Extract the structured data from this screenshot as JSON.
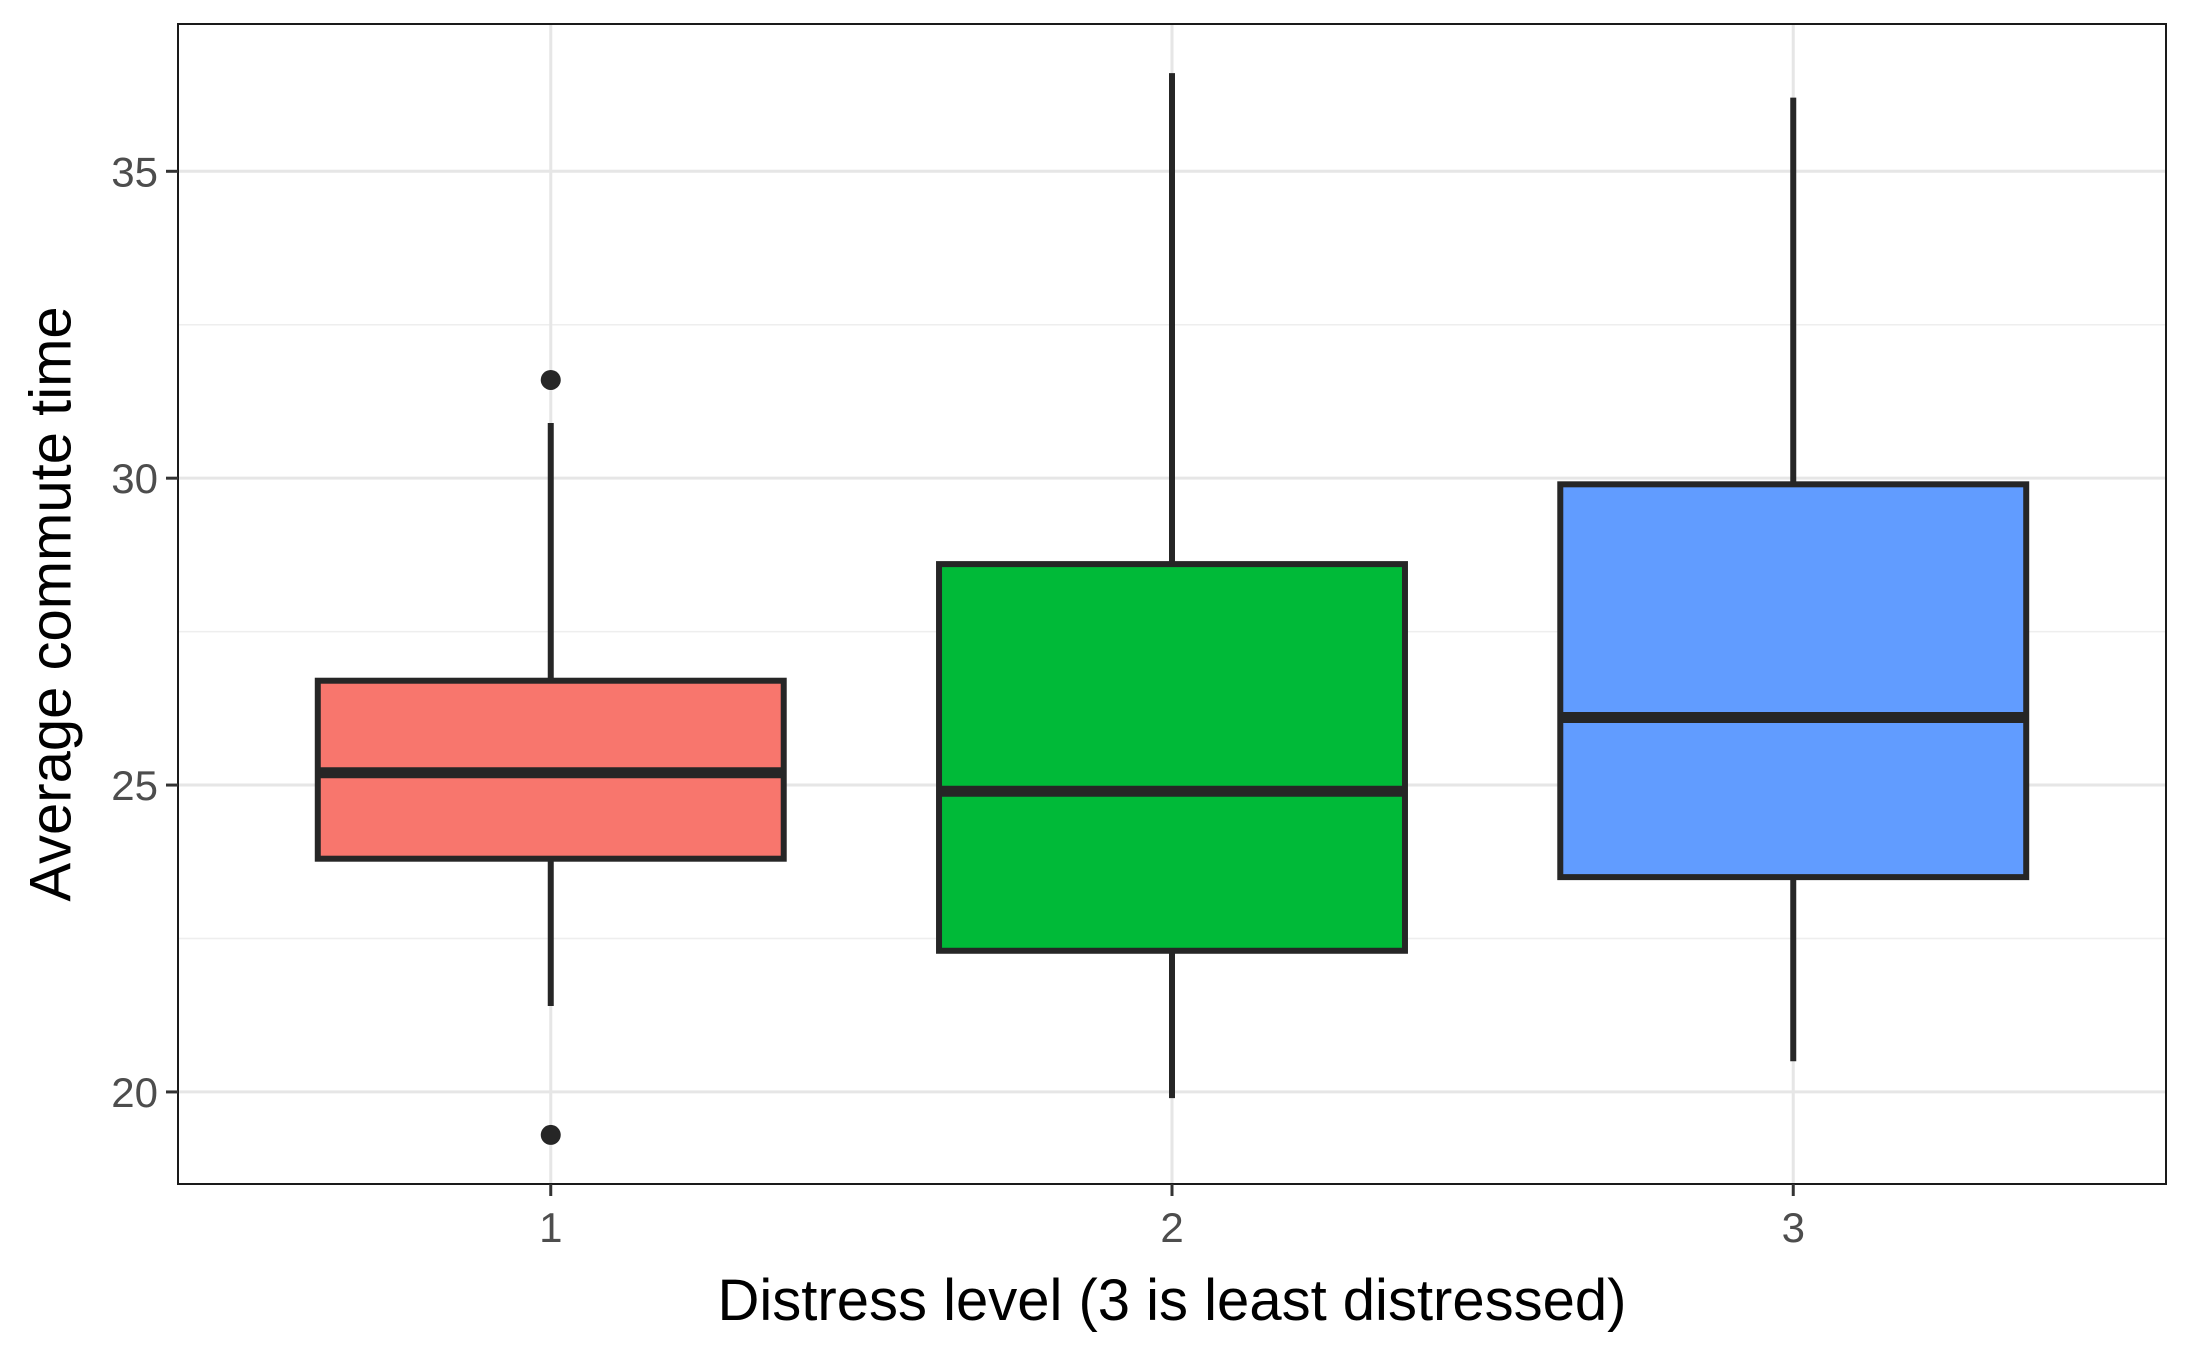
{
  "chart_data": {
    "type": "boxplot",
    "title": "",
    "xlabel": "Distress level (3 is least distressed)",
    "ylabel": "Average commute time",
    "categories": [
      "1",
      "2",
      "3"
    ],
    "ylim": [
      18.5,
      37.4
    ],
    "y_ticks": [
      20,
      25,
      30,
      35
    ],
    "y_tick_labels": [
      "20",
      "25",
      "30",
      "35"
    ],
    "grid": true,
    "legend": "none",
    "boxes": [
      {
        "category": "1",
        "whisker_low": 21.4,
        "q1": 23.8,
        "median": 25.2,
        "q3": 26.7,
        "whisker_high": 30.9,
        "outliers": [
          31.6,
          19.3
        ],
        "color": "#F8766D"
      },
      {
        "category": "2",
        "whisker_low": 19.9,
        "q1": 22.3,
        "median": 24.9,
        "q3": 28.6,
        "whisker_high": 36.6,
        "outliers": [],
        "color": "#00BA38"
      },
      {
        "category": "3",
        "whisker_low": 20.5,
        "q1": 23.5,
        "median": 26.1,
        "q3": 29.9,
        "whisker_high": 36.2,
        "outliers": [],
        "color": "#619CFF"
      }
    ]
  }
}
